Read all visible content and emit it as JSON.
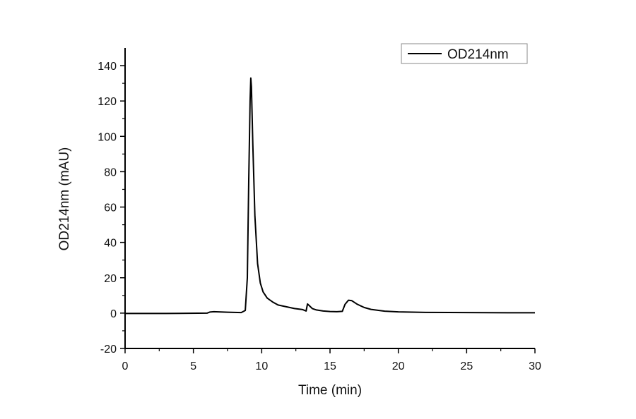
{
  "chart_data": {
    "type": "line",
    "title": "",
    "xlabel": "Time (min)",
    "ylabel": "OD214nm (mAU)",
    "xlim": [
      0,
      30
    ],
    "ylim": [
      -20,
      150
    ],
    "x_ticks": [
      0,
      5,
      10,
      15,
      20,
      25,
      30
    ],
    "x_tick_labels": [
      "0",
      "5",
      "10",
      "15",
      "20",
      "25",
      "30"
    ],
    "y_ticks": [
      -20,
      0,
      20,
      40,
      60,
      80,
      100,
      120,
      140
    ],
    "y_tick_labels": [
      "-20",
      "0",
      "20",
      "40",
      "60",
      "80",
      "100",
      "120",
      "140"
    ],
    "grid": false,
    "legend": {
      "position": "upper right",
      "entries": [
        "OD214nm"
      ]
    },
    "series": [
      {
        "name": "OD214nm",
        "color": "#000000",
        "x": [
          0,
          3,
          6.0,
          6.2,
          6.5,
          7.5,
          8.5,
          8.8,
          8.95,
          9.05,
          9.15,
          9.2,
          9.25,
          9.35,
          9.5,
          9.7,
          9.9,
          10.1,
          10.4,
          10.8,
          11.2,
          11.8,
          12.4,
          13.0,
          13.25,
          13.35,
          13.45,
          13.7,
          14.0,
          14.5,
          15.0,
          15.5,
          15.9,
          16.1,
          16.35,
          16.6,
          17.0,
          17.5,
          18.0,
          19.0,
          20.0,
          22.0,
          25.0,
          28.0,
          30.0
        ],
        "y": [
          -0.2,
          -0.2,
          0.0,
          0.6,
          0.8,
          0.5,
          0.3,
          1.5,
          20,
          75,
          120,
          133,
          128,
          95,
          55,
          28,
          17,
          12,
          8.5,
          6.3,
          4.6,
          3.6,
          2.6,
          2.0,
          1.2,
          5.2,
          4.5,
          2.6,
          1.8,
          1.2,
          0.9,
          0.8,
          1.0,
          5.0,
          7.3,
          7.0,
          5.0,
          3.2,
          2.1,
          1.1,
          0.7,
          0.4,
          0.3,
          0.2,
          0.2
        ]
      }
    ],
    "annotations": []
  },
  "legend": {
    "label": "OD214nm"
  },
  "axes": {
    "xlabel": "Time (min)",
    "ylabel": "OD214nm (mAU)"
  }
}
